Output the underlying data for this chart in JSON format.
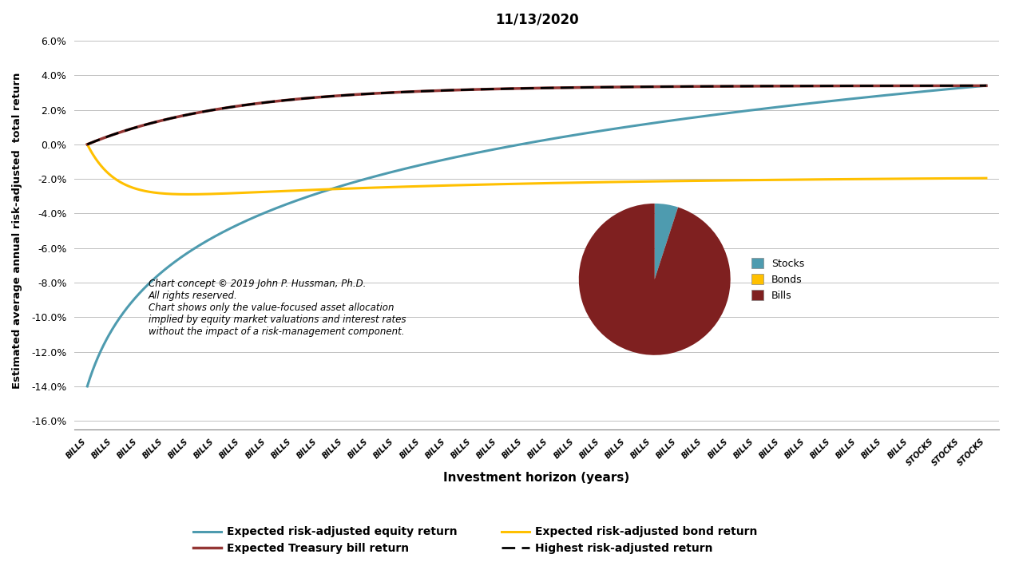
{
  "title": "11/13/2020",
  "xlabel": "Investment horizon (years)",
  "ylabel": "Estimated average annual risk-adjusted  total return",
  "ylim": [
    -0.165,
    0.065
  ],
  "yticks": [
    -0.16,
    -0.14,
    -0.12,
    -0.1,
    -0.08,
    -0.06,
    -0.04,
    -0.02,
    0.0,
    0.02,
    0.04,
    0.06
  ],
  "ytick_labels": [
    "-16.0%",
    "-14.0%",
    "-12.0%",
    "-10.0%",
    "-8.0%",
    "-6.0%",
    "-4.0%",
    "-2.0%",
    "0.0%",
    "2.0%",
    "4.0%",
    "6.0%"
  ],
  "equity_color": "#4E9BAF",
  "bond_color": "#FFC000",
  "bill_color": "#943634",
  "highest_color": "#000000",
  "pie_stocks_color": "#4E9BAF",
  "pie_bonds_color": "#FFC000",
  "pie_bills_color": "#7F2020",
  "annotation_text": "Chart concept © 2019 John P. Hussman, Ph.D.\nAll rights reserved.\nChart shows only the value-focused asset allocation\nimplied by equity market valuations and interest rates\nwithout the impact of a risk-management component.",
  "n_points": 36,
  "bills_label": "BILLS",
  "stocks_label": "STOCKS",
  "n_bills": 33,
  "n_stocks": 3,
  "legend_entries": [
    {
      "label": "Expected risk-adjusted equity return",
      "color": "#4E9BAF",
      "linestyle": "-"
    },
    {
      "label": "Expected risk-adjusted bond return",
      "color": "#FFC000",
      "linestyle": "-"
    },
    {
      "label": "Expected Treasury bill return",
      "color": "#943634",
      "linestyle": "-"
    },
    {
      "label": "Highest risk-adjusted return",
      "color": "#000000",
      "linestyle": "--"
    }
  ]
}
